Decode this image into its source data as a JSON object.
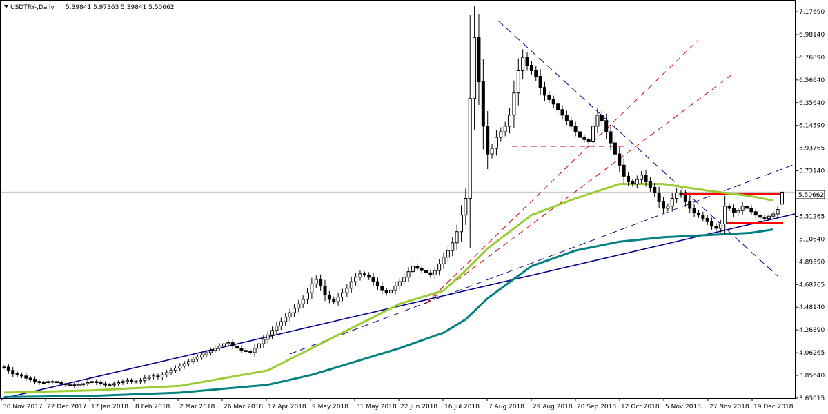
{
  "chart_data": {
    "type": "candlestick",
    "symbol_header": "USDTRY-,Daily",
    "ohlc_header": "5.39841 5.97363 5.39841 5.50662",
    "last_price_label": "5.50662",
    "last_price": 5.50662,
    "ylim": [
      3.65015,
      7.2
    ],
    "y_ticks": [
      "7.17690",
      "6.98140",
      "6.76890",
      "6.56640",
      "6.35640",
      "6.14390",
      "5.93765",
      "5.73140",
      "5.50662",
      "5.31265",
      "5.10640",
      "4.89390",
      "4.68765",
      "4.48140",
      "4.26890",
      "4.06265",
      "3.85640",
      "3.65015"
    ],
    "x_ticks": [
      "30 Nov 2017",
      "22 Dec 2017",
      "17 Jan 2018",
      "8 Feb 2018",
      "2 Mar 2018",
      "26 Mar 2018",
      "17 Apr 2018",
      "9 May 2018",
      "31 May 2018",
      "22 Jun 2018",
      "16 Jul 2018",
      "7 Aug 2018",
      "29 Aug 2018",
      "20 Sep 2018",
      "12 Oct 2018",
      "5 Nov 2018",
      "27 Nov 2018",
      "19 Dec 2018"
    ],
    "grid": false,
    "colors": {
      "ma_fast": "#9acd32",
      "ma_slow": "#008080",
      "trend_solid": "#00008b",
      "trend_dashed": "#00008b",
      "fib_fan": "#cc0000",
      "horizontal_levels": "#ff0000",
      "last_price_line": "#c0c0c0",
      "candle": "#000000"
    },
    "series": [
      {
        "kind": "ohlc",
        "points": [
          {
            "c": 3.93
          },
          {
            "c": 3.9
          },
          {
            "c": 3.87
          },
          {
            "c": 3.86
          },
          {
            "c": 3.85
          },
          {
            "c": 3.83
          },
          {
            "c": 3.82
          },
          {
            "c": 3.8
          },
          {
            "c": 3.79
          },
          {
            "c": 3.79
          },
          {
            "c": 3.8
          },
          {
            "c": 3.8
          },
          {
            "c": 3.79
          },
          {
            "c": 3.78
          },
          {
            "c": 3.77
          },
          {
            "c": 3.77
          },
          {
            "c": 3.76
          },
          {
            "c": 3.77
          },
          {
            "c": 3.78
          },
          {
            "c": 3.79
          },
          {
            "c": 3.8
          },
          {
            "c": 3.79
          },
          {
            "c": 3.78
          },
          {
            "c": 3.77
          },
          {
            "c": 3.77
          },
          {
            "c": 3.78
          },
          {
            "c": 3.79
          },
          {
            "c": 3.8
          },
          {
            "c": 3.81
          },
          {
            "c": 3.8
          },
          {
            "c": 3.8
          },
          {
            "c": 3.81
          },
          {
            "c": 3.83
          },
          {
            "c": 3.84
          },
          {
            "c": 3.85
          },
          {
            "c": 3.84
          },
          {
            "c": 3.86
          },
          {
            "c": 3.88
          },
          {
            "c": 3.9
          },
          {
            "c": 3.92
          },
          {
            "c": 3.94
          },
          {
            "c": 3.96
          },
          {
            "c": 3.98
          },
          {
            "c": 4.0
          },
          {
            "c": 4.02
          },
          {
            "c": 4.04
          },
          {
            "c": 4.06
          },
          {
            "c": 4.08
          },
          {
            "c": 4.1
          },
          {
            "c": 4.12
          },
          {
            "c": 4.14
          },
          {
            "c": 4.15
          },
          {
            "c": 4.12
          },
          {
            "c": 4.1
          },
          {
            "c": 4.08
          },
          {
            "c": 4.07
          },
          {
            "c": 4.06
          },
          {
            "c": 4.1
          },
          {
            "c": 4.14
          },
          {
            "c": 4.18
          },
          {
            "c": 4.22
          },
          {
            "c": 4.26
          },
          {
            "c": 4.3
          },
          {
            "c": 4.34
          },
          {
            "c": 4.38
          },
          {
            "c": 4.42
          },
          {
            "c": 4.46
          },
          {
            "c": 4.5
          },
          {
            "c": 4.54
          },
          {
            "c": 4.6
          },
          {
            "c": 4.68
          },
          {
            "c": 4.72
          },
          {
            "c": 4.66
          },
          {
            "c": 4.58
          },
          {
            "c": 4.54
          },
          {
            "c": 4.52
          },
          {
            "c": 4.56
          },
          {
            "c": 4.6
          },
          {
            "c": 4.64
          },
          {
            "c": 4.7
          },
          {
            "c": 4.74
          },
          {
            "c": 4.77
          },
          {
            "c": 4.76
          },
          {
            "c": 4.74
          },
          {
            "c": 4.7
          },
          {
            "c": 4.66
          },
          {
            "c": 4.62
          },
          {
            "c": 4.6
          },
          {
            "c": 4.62
          },
          {
            "c": 4.66
          },
          {
            "c": 4.7
          },
          {
            "c": 4.74
          },
          {
            "c": 4.79
          },
          {
            "c": 4.84
          },
          {
            "c": 4.82
          },
          {
            "c": 4.8
          },
          {
            "c": 4.78
          },
          {
            "c": 4.76
          },
          {
            "c": 4.8
          },
          {
            "c": 4.86
          },
          {
            "c": 4.92
          },
          {
            "c": 4.98
          },
          {
            "c": 5.05
          },
          {
            "c": 5.15
          },
          {
            "c": 5.3
          },
          {
            "c": 5.45
          },
          {
            "c": 6.35
          },
          {
            "c": 6.9
          },
          {
            "c": 6.5
          },
          {
            "c": 6.1
          },
          {
            "c": 5.85
          },
          {
            "c": 5.9
          },
          {
            "c": 6.0
          },
          {
            "c": 6.05
          },
          {
            "c": 6.1
          },
          {
            "c": 6.2
          },
          {
            "c": 6.4
          },
          {
            "c": 6.6
          },
          {
            "c": 6.72
          },
          {
            "c": 6.65
          },
          {
            "c": 6.6
          },
          {
            "c": 6.55
          },
          {
            "c": 6.45
          },
          {
            "c": 6.38
          },
          {
            "c": 6.34
          },
          {
            "c": 6.3
          },
          {
            "c": 6.25
          },
          {
            "c": 6.2
          },
          {
            "c": 6.15
          },
          {
            "c": 6.1
          },
          {
            "c": 6.05
          },
          {
            "c": 6.0
          },
          {
            "c": 5.98
          },
          {
            "c": 5.96
          },
          {
            "c": 6.1
          },
          {
            "c": 6.2
          },
          {
            "c": 6.15
          },
          {
            "c": 6.05
          },
          {
            "c": 5.95
          },
          {
            "c": 5.85
          },
          {
            "c": 5.75
          },
          {
            "c": 5.65
          },
          {
            "c": 5.6
          },
          {
            "c": 5.58
          },
          {
            "c": 5.62
          },
          {
            "c": 5.66
          },
          {
            "c": 5.6
          },
          {
            "c": 5.55
          },
          {
            "c": 5.5
          },
          {
            "c": 5.42
          },
          {
            "c": 5.36
          },
          {
            "c": 5.38
          },
          {
            "c": 5.45
          },
          {
            "c": 5.5
          },
          {
            "c": 5.48
          },
          {
            "c": 5.42
          },
          {
            "c": 5.36
          },
          {
            "c": 5.32
          },
          {
            "c": 5.3
          },
          {
            "c": 5.27
          },
          {
            "c": 5.24
          },
          {
            "c": 5.2
          },
          {
            "c": 5.18
          },
          {
            "c": 5.22
          },
          {
            "c": 5.38
          },
          {
            "c": 5.36
          },
          {
            "c": 5.32
          },
          {
            "c": 5.34
          },
          {
            "c": 5.38
          },
          {
            "c": 5.36
          },
          {
            "c": 5.33
          },
          {
            "c": 5.3
          },
          {
            "c": 5.28
          },
          {
            "c": 5.27
          },
          {
            "c": 5.29
          },
          {
            "c": 5.31
          },
          {
            "c": 5.35
          },
          {
            "c": 5.5066
          }
        ]
      },
      {
        "kind": "ma_fast",
        "x": [
          0,
          20,
          40,
          60,
          70,
          80,
          90,
          100,
          105,
          110,
          120,
          130,
          140,
          150,
          160,
          170,
          175
        ],
        "values": [
          3.7,
          3.72,
          3.76,
          3.9,
          4.1,
          4.3,
          4.5,
          4.62,
          4.8,
          5.0,
          5.3,
          5.45,
          5.58,
          5.58,
          5.52,
          5.47,
          5.43
        ]
      },
      {
        "kind": "ma_slow",
        "x": [
          0,
          20,
          40,
          60,
          70,
          80,
          90,
          100,
          105,
          110,
          120,
          130,
          140,
          150,
          160,
          170,
          175
        ],
        "values": [
          3.66,
          3.67,
          3.7,
          3.77,
          3.86,
          3.98,
          4.1,
          4.24,
          4.36,
          4.55,
          4.84,
          4.98,
          5.06,
          5.1,
          5.12,
          5.14,
          5.17
        ]
      }
    ]
  }
}
